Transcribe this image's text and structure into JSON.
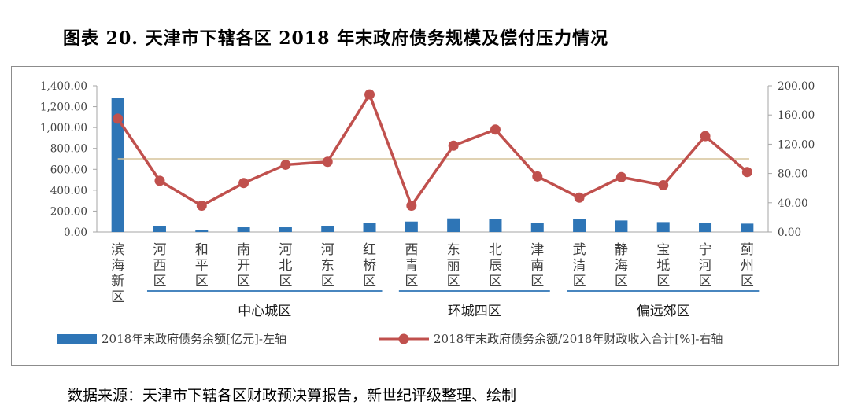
{
  "title": "图表 20. 天津市下辖各区 2018 年末政府债务规模及偿付压力情况",
  "source": "数据来源：天津市下辖各区财政预决算报告，新世纪评级整理、绘制",
  "colors": {
    "bar": "#2e75b6",
    "line": "#c0504d",
    "ref_line": "#d6c39a",
    "group_line": "#2e75b6",
    "axis": "#a6a6a6"
  },
  "chart_data": {
    "type": "bar+line",
    "title": "",
    "categories": [
      "滨海新区",
      "河西区",
      "和平区",
      "南开区",
      "河北区",
      "河东区",
      "红桥区",
      "西青区",
      "东丽区",
      "北辰区",
      "津南区",
      "武清区",
      "静海区",
      "宝坻区",
      "宁河区",
      "蓟州区"
    ],
    "category_labels": [
      [
        "滨",
        "海",
        "新",
        "区"
      ],
      [
        "河",
        "西",
        "区"
      ],
      [
        "和",
        "平",
        "区"
      ],
      [
        "南",
        "开",
        "区"
      ],
      [
        "河",
        "北",
        "区"
      ],
      [
        "河",
        "东",
        "区"
      ],
      [
        "红",
        "桥",
        "区"
      ],
      [
        "西",
        "青",
        "区"
      ],
      [
        "东",
        "丽",
        "区"
      ],
      [
        "北",
        "辰",
        "区"
      ],
      [
        "津",
        "南",
        "区"
      ],
      [
        "武",
        "清",
        "区"
      ],
      [
        "静",
        "海",
        "区"
      ],
      [
        "宝",
        "坻",
        "区"
      ],
      [
        "宁",
        "河",
        "区"
      ],
      [
        "蓟",
        "州",
        "区"
      ]
    ],
    "series": [
      {
        "name": "2018年末政府债务余额[亿元]-左轴",
        "type": "bar",
        "axis": "left",
        "values": [
          1280,
          55,
          20,
          45,
          45,
          55,
          85,
          100,
          130,
          125,
          85,
          125,
          110,
          95,
          90,
          80
        ]
      },
      {
        "name": "2018年末政府债务余额/2018年财政收入合计[%]-右轴",
        "type": "line",
        "axis": "right",
        "values": [
          155,
          70,
          36,
          67,
          92,
          96,
          188,
          36,
          118,
          140,
          76,
          47,
          75,
          64,
          131,
          82
        ]
      }
    ],
    "reference_line": {
      "axis": "right",
      "value": 100
    },
    "left_axis": {
      "min": 0,
      "max": 1400,
      "step": 200,
      "tick_labels": [
        "0.00",
        "200.00",
        "400.00",
        "600.00",
        "800.00",
        "1,000.00",
        "1,200.00",
        "1,400.00"
      ]
    },
    "right_axis": {
      "min": 0,
      "max": 200,
      "step": 40,
      "tick_labels": [
        "0.00",
        "40.00",
        "80.00",
        "120.00",
        "160.00",
        "200.00"
      ]
    },
    "groups": [
      {
        "label": "中心城区",
        "from": 1,
        "to": 6
      },
      {
        "label": "环城四区",
        "from": 7,
        "to": 10
      },
      {
        "label": "偏远郊区",
        "from": 11,
        "to": 15
      }
    ],
    "legend": [
      {
        "label": "2018年末政府债务余额[亿元]-左轴",
        "type": "bar"
      },
      {
        "label": "2018年末政府债务余额/2018年财政收入合计[%]-右轴",
        "type": "line"
      }
    ]
  }
}
